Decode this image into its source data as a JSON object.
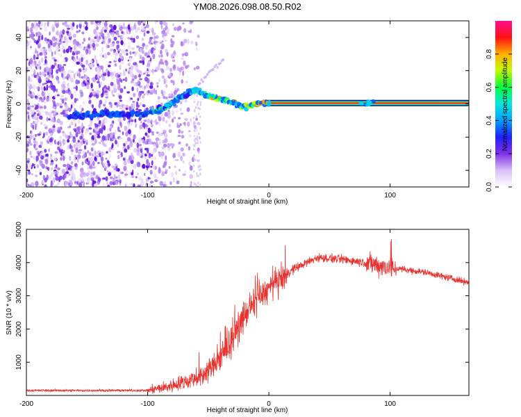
{
  "title": "YM08.2026.098.08.50.R02",
  "chart_data": [
    {
      "type": "heatmap",
      "xlabel": "Height of straight line (km)",
      "ylabel": "Frequency (Hz)",
      "xlim": [
        -200,
        165
      ],
      "ylim": [
        -50,
        50
      ],
      "xticks": [
        -200,
        -100,
        0,
        100
      ],
      "xtick_labels": [
        "-200",
        "-100",
        "0",
        "100"
      ],
      "yticks": [
        -40,
        -20,
        0,
        20,
        40
      ],
      "ytick_labels": [
        "-40",
        "-20",
        "0",
        "20",
        "40"
      ],
      "ridge": [
        {
          "x": -165,
          "y": -7.5
        },
        {
          "x": -140,
          "y": -6
        },
        {
          "x": -100,
          "y": -6
        },
        {
          "x": -85,
          "y": -2
        },
        {
          "x": -70,
          "y": 5
        },
        {
          "x": -60,
          "y": 9
        },
        {
          "x": -52,
          "y": 5
        },
        {
          "x": -40,
          "y": 3
        },
        {
          "x": -30,
          "y": 1
        },
        {
          "x": -20,
          "y": -2
        },
        {
          "x": -10,
          "y": 0.5
        },
        {
          "x": 0,
          "y": 0.5
        },
        {
          "x": 165,
          "y": 0.5
        }
      ],
      "colorbar": {
        "label": "Normalized spectral amplitude",
        "range": [
          0,
          1
        ],
        "ticks": [
          0.0,
          0.2,
          0.4,
          0.6,
          0.8
        ],
        "tick_labels": [
          "0.0",
          "0.2",
          "0.4",
          "0.6",
          "0.8"
        ],
        "colors": [
          "#ffffff",
          "#b070e8",
          "#6010e8",
          "#0060ff",
          "#00e0ff",
          "#00ff60",
          "#c0ff00",
          "#ffa000",
          "#ff1010",
          "#ff1090"
        ]
      }
    },
    {
      "type": "line",
      "xlabel": "Height of straight line (km)",
      "ylabel": "SNR (10 * v/v)",
      "xlim": [
        -200,
        165
      ],
      "ylim": [
        0,
        5000
      ],
      "xticks": [
        -200,
        -100,
        0,
        100
      ],
      "xtick_labels": [
        "-200",
        "-100",
        "0",
        "100"
      ],
      "yticks": [
        1000,
        2000,
        3000,
        4000,
        5000
      ],
      "ytick_labels": [
        "1000",
        "2000",
        "3000",
        "4000",
        "5000"
      ],
      "color": "#e8322e",
      "trend": [
        {
          "x": -200,
          "y": 150
        },
        {
          "x": -100,
          "y": 150
        },
        {
          "x": -85,
          "y": 250
        },
        {
          "x": -70,
          "y": 400
        },
        {
          "x": -55,
          "y": 600
        },
        {
          "x": -40,
          "y": 1100
        },
        {
          "x": -30,
          "y": 1700
        },
        {
          "x": -20,
          "y": 2400
        },
        {
          "x": -10,
          "y": 2900
        },
        {
          "x": 0,
          "y": 3200
        },
        {
          "x": 10,
          "y": 3500
        },
        {
          "x": 20,
          "y": 3800
        },
        {
          "x": 40,
          "y": 4150
        },
        {
          "x": 60,
          "y": 4100
        },
        {
          "x": 80,
          "y": 4000
        },
        {
          "x": 100,
          "y": 3850
        },
        {
          "x": 130,
          "y": 3700
        },
        {
          "x": 165,
          "y": 3400
        }
      ]
    }
  ]
}
